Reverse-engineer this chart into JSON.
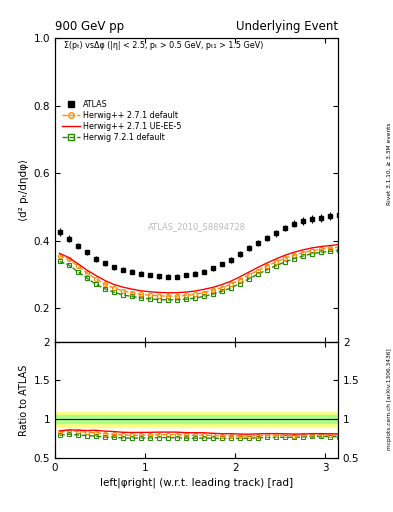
{
  "title_left": "900 GeV pp",
  "title_right": "Underlying Event",
  "subtitle": "Σ(pₜ) vsΔφ (|η| < 2.5, pₜ > 0.5 GeV, pₜ₁ > 1.5 GeV)",
  "ylabel_main": "⟨d² pₜ/dηdφ⟩",
  "ylabel_ratio": "Ratio to ATLAS",
  "xlabel": "left|φright| (w.r.t. leading track) [rad]",
  "right_label_main": "Rivet 3.1.10, ≥ 3.3M events",
  "right_label_ratio": "mcplots.cern.ch [arXiv:1306.3436]",
  "watermark": "ATLAS_2010_S8894728",
  "ylim_main": [
    0.1,
    1.0
  ],
  "ylim_ratio": [
    0.5,
    2.0
  ],
  "yticks_main": [
    0.2,
    0.4,
    0.6,
    0.8,
    1.0
  ],
  "yticks_ratio": [
    0.5,
    1.0,
    1.5,
    2.0
  ],
  "xlim": [
    0.0,
    3.14159
  ],
  "xticks": [
    0,
    1,
    2,
    3
  ],
  "atlas_color": "#000000",
  "hw271_default_color": "#ff8c00",
  "hw271_ueee5_color": "#ff0000",
  "hw721_default_color": "#228b00",
  "band_yellow": "#ffff88",
  "band_green": "#aaff88",
  "dphi": [
    0.05,
    0.15,
    0.25,
    0.35,
    0.45,
    0.55,
    0.65,
    0.75,
    0.85,
    0.95,
    1.05,
    1.15,
    1.25,
    1.35,
    1.45,
    1.55,
    1.65,
    1.75,
    1.85,
    1.95,
    2.05,
    2.15,
    2.25,
    2.35,
    2.45,
    2.55,
    2.65,
    2.75,
    2.85,
    2.95,
    3.05,
    3.15
  ],
  "atlas_vals": [
    0.425,
    0.405,
    0.385,
    0.365,
    0.345,
    0.332,
    0.32,
    0.314,
    0.308,
    0.302,
    0.298,
    0.294,
    0.293,
    0.293,
    0.298,
    0.302,
    0.308,
    0.318,
    0.33,
    0.342,
    0.36,
    0.378,
    0.393,
    0.408,
    0.422,
    0.437,
    0.45,
    0.458,
    0.463,
    0.468,
    0.473,
    0.477
  ],
  "atlas_yerr": [
    0.012,
    0.01,
    0.009,
    0.008,
    0.008,
    0.007,
    0.007,
    0.007,
    0.007,
    0.007,
    0.007,
    0.007,
    0.007,
    0.007,
    0.007,
    0.007,
    0.007,
    0.007,
    0.007,
    0.008,
    0.008,
    0.008,
    0.009,
    0.009,
    0.01,
    0.01,
    0.011,
    0.011,
    0.012,
    0.012,
    0.013,
    0.013
  ],
  "hw271_default_vals": [
    0.355,
    0.345,
    0.325,
    0.305,
    0.286,
    0.271,
    0.259,
    0.251,
    0.245,
    0.24,
    0.238,
    0.236,
    0.235,
    0.235,
    0.237,
    0.24,
    0.245,
    0.252,
    0.26,
    0.27,
    0.283,
    0.297,
    0.311,
    0.324,
    0.336,
    0.347,
    0.356,
    0.364,
    0.37,
    0.374,
    0.377,
    0.38
  ],
  "hw271_ueee5_vals": [
    0.362,
    0.35,
    0.332,
    0.313,
    0.297,
    0.282,
    0.27,
    0.262,
    0.256,
    0.251,
    0.248,
    0.246,
    0.245,
    0.245,
    0.247,
    0.25,
    0.255,
    0.261,
    0.269,
    0.279,
    0.292,
    0.306,
    0.32,
    0.333,
    0.345,
    0.356,
    0.365,
    0.372,
    0.378,
    0.382,
    0.385,
    0.388
  ],
  "hw721_default_vals": [
    0.338,
    0.328,
    0.308,
    0.289,
    0.271,
    0.257,
    0.247,
    0.239,
    0.234,
    0.23,
    0.227,
    0.225,
    0.224,
    0.224,
    0.226,
    0.229,
    0.234,
    0.241,
    0.249,
    0.259,
    0.272,
    0.286,
    0.3,
    0.313,
    0.325,
    0.336,
    0.346,
    0.354,
    0.361,
    0.365,
    0.368,
    0.371
  ],
  "ratio_hw271_default": [
    0.835,
    0.852,
    0.844,
    0.836,
    0.829,
    0.816,
    0.809,
    0.799,
    0.795,
    0.795,
    0.799,
    0.803,
    0.803,
    0.802,
    0.795,
    0.795,
    0.795,
    0.793,
    0.788,
    0.789,
    0.786,
    0.785,
    0.791,
    0.794,
    0.796,
    0.794,
    0.791,
    0.795,
    0.799,
    0.799,
    0.797,
    0.797
  ],
  "ratio_hw271_ueee5": [
    0.852,
    0.864,
    0.862,
    0.857,
    0.86,
    0.849,
    0.844,
    0.834,
    0.831,
    0.832,
    0.833,
    0.836,
    0.836,
    0.836,
    0.829,
    0.828,
    0.828,
    0.821,
    0.815,
    0.816,
    0.811,
    0.809,
    0.814,
    0.817,
    0.817,
    0.815,
    0.811,
    0.812,
    0.816,
    0.817,
    0.814,
    0.814
  ],
  "ratio_hw721_default": [
    0.795,
    0.81,
    0.8,
    0.791,
    0.785,
    0.773,
    0.772,
    0.76,
    0.759,
    0.762,
    0.762,
    0.766,
    0.765,
    0.765,
    0.758,
    0.758,
    0.76,
    0.758,
    0.755,
    0.757,
    0.756,
    0.757,
    0.763,
    0.767,
    0.77,
    0.769,
    0.769,
    0.773,
    0.78,
    0.78,
    0.778,
    0.778
  ]
}
